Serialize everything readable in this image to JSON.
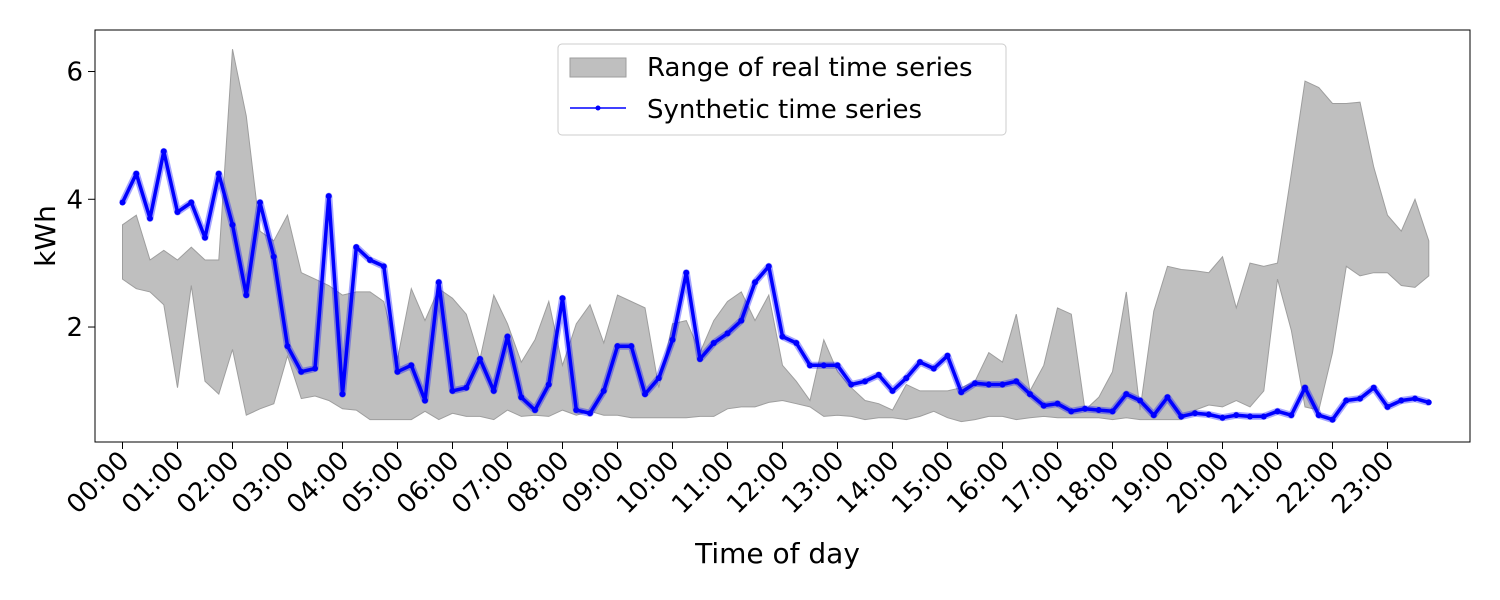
{
  "chart_data": {
    "type": "area",
    "title": "",
    "xlabel": "Time of day",
    "ylabel": "kWh",
    "xlim": [
      -0.5,
      24.5
    ],
    "ylim": [
      0.2,
      6.65
    ],
    "grid": false,
    "legend_position": "top-center",
    "x_ticks": [
      0,
      1,
      2,
      3,
      4,
      5,
      6,
      7,
      8,
      9,
      10,
      11,
      12,
      13,
      14,
      15,
      16,
      17,
      18,
      19,
      20,
      21,
      22,
      23
    ],
    "x_tick_labels": [
      "00:00",
      "01:00",
      "02:00",
      "03:00",
      "04:00",
      "05:00",
      "06:00",
      "07:00",
      "08:00",
      "09:00",
      "10:00",
      "11:00",
      "12:00",
      "13:00",
      "14:00",
      "15:00",
      "16:00",
      "17:00",
      "18:00",
      "19:00",
      "20:00",
      "21:00",
      "22:00",
      "23:00"
    ],
    "y_ticks": [
      2,
      4,
      6
    ],
    "y_tick_labels": [
      "2",
      "4",
      "6"
    ],
    "legend": [
      "Range of real time series",
      "Synthetic time series"
    ],
    "colors": {
      "band": "#bfbfbf",
      "band_edge": "#9e9e9e",
      "synthetic": "#0000ff"
    },
    "x": [
      0,
      0.25,
      0.5,
      0.75,
      1,
      1.25,
      1.5,
      1.75,
      2,
      2.25,
      2.5,
      2.75,
      3,
      3.25,
      3.5,
      3.75,
      4,
      4.25,
      4.5,
      4.75,
      5,
      5.25,
      5.5,
      5.75,
      6,
      6.25,
      6.5,
      6.75,
      7,
      7.25,
      7.5,
      7.75,
      8,
      8.25,
      8.5,
      8.75,
      9,
      9.25,
      9.5,
      9.75,
      10,
      10.25,
      10.5,
      10.75,
      11,
      11.25,
      11.5,
      11.75,
      12,
      12.25,
      12.5,
      12.75,
      13,
      13.25,
      13.5,
      13.75,
      14,
      14.25,
      14.5,
      14.75,
      15,
      15.25,
      15.5,
      15.75,
      16,
      16.25,
      16.5,
      16.75,
      17,
      17.25,
      17.5,
      17.75,
      18,
      18.25,
      18.5,
      18.75,
      19,
      19.25,
      19.5,
      19.75,
      20,
      20.25,
      20.5,
      20.75,
      21,
      21.25,
      21.5,
      21.75,
      22,
      22.25,
      22.5,
      22.75,
      23,
      23.25,
      23.5,
      23.75
    ],
    "series": [
      {
        "name": "Range of real time series",
        "kind": "band",
        "upper": [
          3.6,
          3.75,
          3.05,
          3.2,
          3.05,
          3.25,
          3.05,
          3.05,
          6.35,
          5.3,
          3.5,
          3.35,
          3.75,
          2.85,
          2.75,
          2.65,
          2.5,
          2.55,
          2.55,
          2.4,
          1.5,
          2.6,
          2.1,
          2.6,
          2.45,
          2.2,
          1.5,
          2.5,
          2.05,
          1.45,
          1.8,
          2.4,
          1.4,
          2.05,
          2.35,
          1.75,
          2.5,
          2.4,
          2.3,
          1.05,
          2.05,
          2.1,
          1.6,
          2.1,
          2.4,
          2.55,
          2.1,
          2.5,
          1.4,
          1.15,
          0.85,
          1.8,
          1.3,
          1.05,
          0.85,
          0.8,
          0.7,
          1.1,
          1.0,
          1.0,
          1.0,
          1.05,
          1.15,
          1.6,
          1.45,
          2.2,
          1.0,
          1.4,
          2.3,
          2.2,
          0.7,
          0.9,
          1.3,
          2.55,
          0.7,
          2.25,
          2.95,
          2.9,
          2.88,
          2.85,
          3.1,
          2.3,
          3.0,
          2.95,
          3.0,
          4.4,
          5.85,
          5.75,
          5.5,
          5.5,
          5.52,
          4.5,
          3.75,
          3.5,
          4.0,
          3.35
        ],
        "lower": [
          2.75,
          2.6,
          2.55,
          2.35,
          1.05,
          2.65,
          1.15,
          0.95,
          1.65,
          0.62,
          0.72,
          0.8,
          1.55,
          0.88,
          0.92,
          0.85,
          0.72,
          0.7,
          0.55,
          0.55,
          0.55,
          0.55,
          0.68,
          0.55,
          0.65,
          0.6,
          0.6,
          0.55,
          0.7,
          0.6,
          0.62,
          0.6,
          0.7,
          0.62,
          0.68,
          0.62,
          0.62,
          0.58,
          0.58,
          0.58,
          0.58,
          0.58,
          0.6,
          0.6,
          0.72,
          0.75,
          0.75,
          0.82,
          0.85,
          0.8,
          0.75,
          0.6,
          0.62,
          0.6,
          0.55,
          0.58,
          0.58,
          0.55,
          0.6,
          0.68,
          0.58,
          0.52,
          0.55,
          0.6,
          0.6,
          0.55,
          0.58,
          0.6,
          0.58,
          0.58,
          0.58,
          0.58,
          0.55,
          0.58,
          0.55,
          0.55,
          0.55,
          0.55,
          0.7,
          0.78,
          0.75,
          0.85,
          0.75,
          1.0,
          2.75,
          1.95,
          0.75,
          0.7,
          1.6,
          2.95,
          2.8,
          2.85,
          2.85,
          2.65,
          2.62,
          2.8
        ]
      },
      {
        "name": "Synthetic time series",
        "kind": "line",
        "values": [
          3.95,
          4.4,
          3.7,
          4.75,
          3.8,
          3.95,
          3.4,
          4.4,
          3.6,
          2.5,
          3.95,
          3.1,
          1.7,
          1.3,
          1.35,
          4.05,
          0.95,
          3.25,
          3.05,
          2.95,
          1.3,
          1.4,
          0.85,
          2.7,
          1.0,
          1.05,
          1.5,
          1.0,
          1.85,
          0.9,
          0.7,
          1.1,
          2.45,
          0.7,
          0.65,
          1.0,
          1.7,
          1.7,
          0.95,
          1.2,
          1.8,
          2.85,
          1.5,
          1.75,
          1.9,
          2.1,
          2.7,
          2.95,
          1.85,
          1.75,
          1.4,
          1.4,
          1.4,
          1.1,
          1.15,
          1.25,
          1.0,
          1.2,
          1.45,
          1.35,
          1.55,
          0.98,
          1.12,
          1.1,
          1.1,
          1.15,
          0.95,
          0.77,
          0.8,
          0.68,
          0.72,
          0.7,
          0.68,
          0.95,
          0.85,
          0.62,
          0.9,
          0.6,
          0.65,
          0.63,
          0.58,
          0.62,
          0.6,
          0.6,
          0.68,
          0.62,
          1.05,
          0.62,
          0.55,
          0.85,
          0.88,
          1.05,
          0.75,
          0.85,
          0.88,
          0.82
        ]
      }
    ]
  }
}
